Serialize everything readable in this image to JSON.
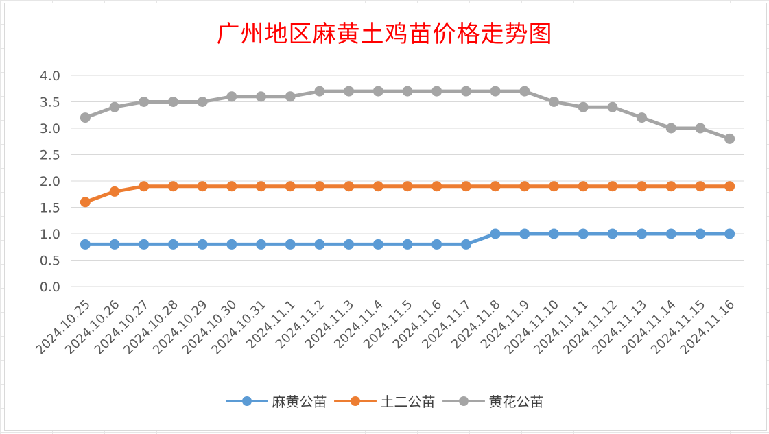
{
  "chart_data": {
    "type": "line",
    "title": "广州地区麻黄土鸡苗价格走势图",
    "categories": [
      "2024.10.25",
      "2024.10.26",
      "2024.10.27",
      "2024.10.28",
      "2024.10.29",
      "2024.10.30",
      "2024.10.31",
      "2024.11.1",
      "2024.11.2",
      "2024.11.3",
      "2024.11.4",
      "2024.11.5",
      "2024.11.6",
      "2024.11.7",
      "2024.11.8",
      "2024.11.9",
      "2024.11.10",
      "2024.11.11",
      "2024.11.12",
      "2024.11.13",
      "2024.11.14",
      "2024.11.15",
      "2024.11.16"
    ],
    "series": [
      {
        "name": "麻黄公苗",
        "color": "#5b9bd5",
        "values": [
          0.8,
          0.8,
          0.8,
          0.8,
          0.8,
          0.8,
          0.8,
          0.8,
          0.8,
          0.8,
          0.8,
          0.8,
          0.8,
          0.8,
          1.0,
          1.0,
          1.0,
          1.0,
          1.0,
          1.0,
          1.0,
          1.0,
          1.0
        ]
      },
      {
        "name": "土二公苗",
        "color": "#ed7d31",
        "values": [
          1.6,
          1.8,
          1.9,
          1.9,
          1.9,
          1.9,
          1.9,
          1.9,
          1.9,
          1.9,
          1.9,
          1.9,
          1.9,
          1.9,
          1.9,
          1.9,
          1.9,
          1.9,
          1.9,
          1.9,
          1.9,
          1.9,
          1.9
        ]
      },
      {
        "name": "黄花公苗",
        "color": "#a5a5a5",
        "values": [
          3.2,
          3.4,
          3.5,
          3.5,
          3.5,
          3.6,
          3.6,
          3.6,
          3.7,
          3.7,
          3.7,
          3.7,
          3.7,
          3.7,
          3.7,
          3.7,
          3.5,
          3.4,
          3.4,
          3.2,
          3.0,
          3.0,
          2.8
        ]
      }
    ],
    "yticks": [
      "0.0",
      "0.5",
      "1.0",
      "1.5",
      "2.0",
      "2.5",
      "3.0",
      "3.5",
      "4.0"
    ],
    "ylim": [
      0,
      4.0
    ],
    "grid": true,
    "legend_position": "bottom"
  }
}
